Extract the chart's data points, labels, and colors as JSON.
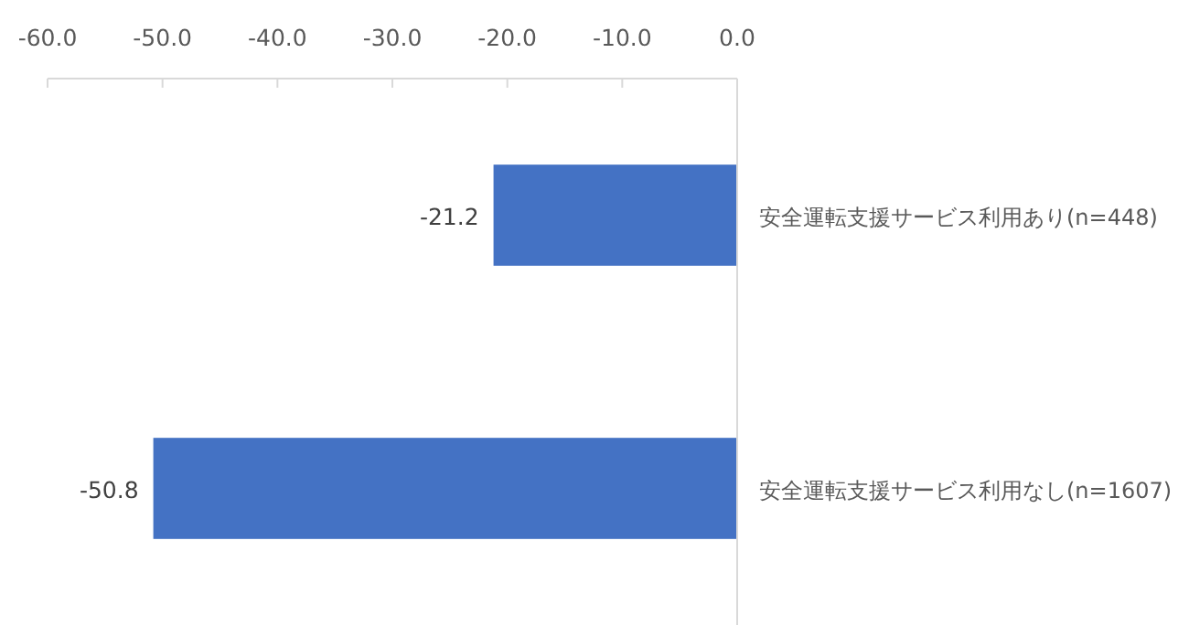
{
  "chart_data": {
    "type": "bar",
    "orientation": "horizontal",
    "categories": [
      "安全運転支援サービス利用あり(n=448)",
      "安全運転支援サービス利用なし(n=1607)"
    ],
    "values": [
      -21.2,
      -50.8
    ],
    "color": "#4472c4",
    "xlim": [
      -60,
      0
    ],
    "xticks": [
      {
        "value": -60,
        "label": "-60.0"
      },
      {
        "value": -50,
        "label": "-50.0"
      },
      {
        "value": -40,
        "label": "-40.0"
      },
      {
        "value": -30,
        "label": "-30.0"
      },
      {
        "value": -20,
        "label": "-20.0"
      },
      {
        "value": -10,
        "label": "-10.0"
      },
      {
        "value": 0,
        "label": "0.0"
      }
    ],
    "data_labels": true
  }
}
